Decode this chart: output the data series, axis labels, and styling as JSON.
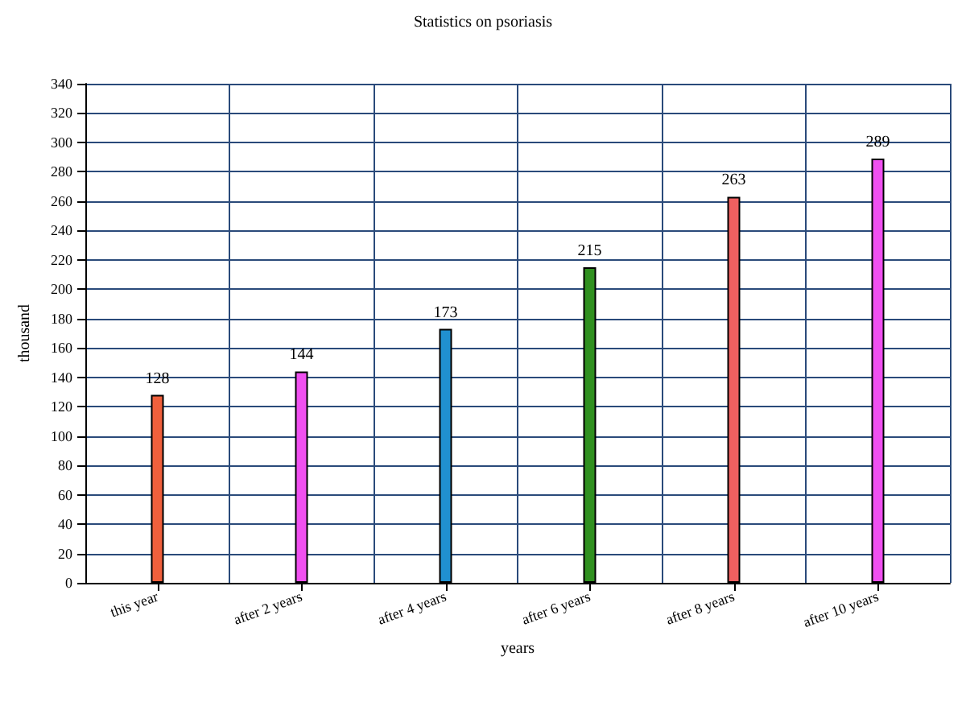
{
  "chart_data": {
    "type": "bar",
    "title": "Statistics on psoriasis",
    "xlabel": "years",
    "ylabel": "thousand",
    "categories": [
      "this year",
      "after 2 years",
      "after 4 years",
      "after 6 years",
      "after 8 years",
      "after 10 years"
    ],
    "values": [
      128,
      144,
      173,
      215,
      263,
      289
    ],
    "colors": [
      "#f0603c",
      "#f050f0",
      "#2090d0",
      "#309020",
      "#f06060",
      "#f050f0"
    ],
    "ylim": [
      0,
      340
    ],
    "yticks": [
      0,
      20,
      40,
      60,
      80,
      100,
      120,
      140,
      160,
      180,
      200,
      220,
      240,
      260,
      280,
      300,
      320,
      340
    ],
    "grid": true,
    "data_labels": true
  }
}
